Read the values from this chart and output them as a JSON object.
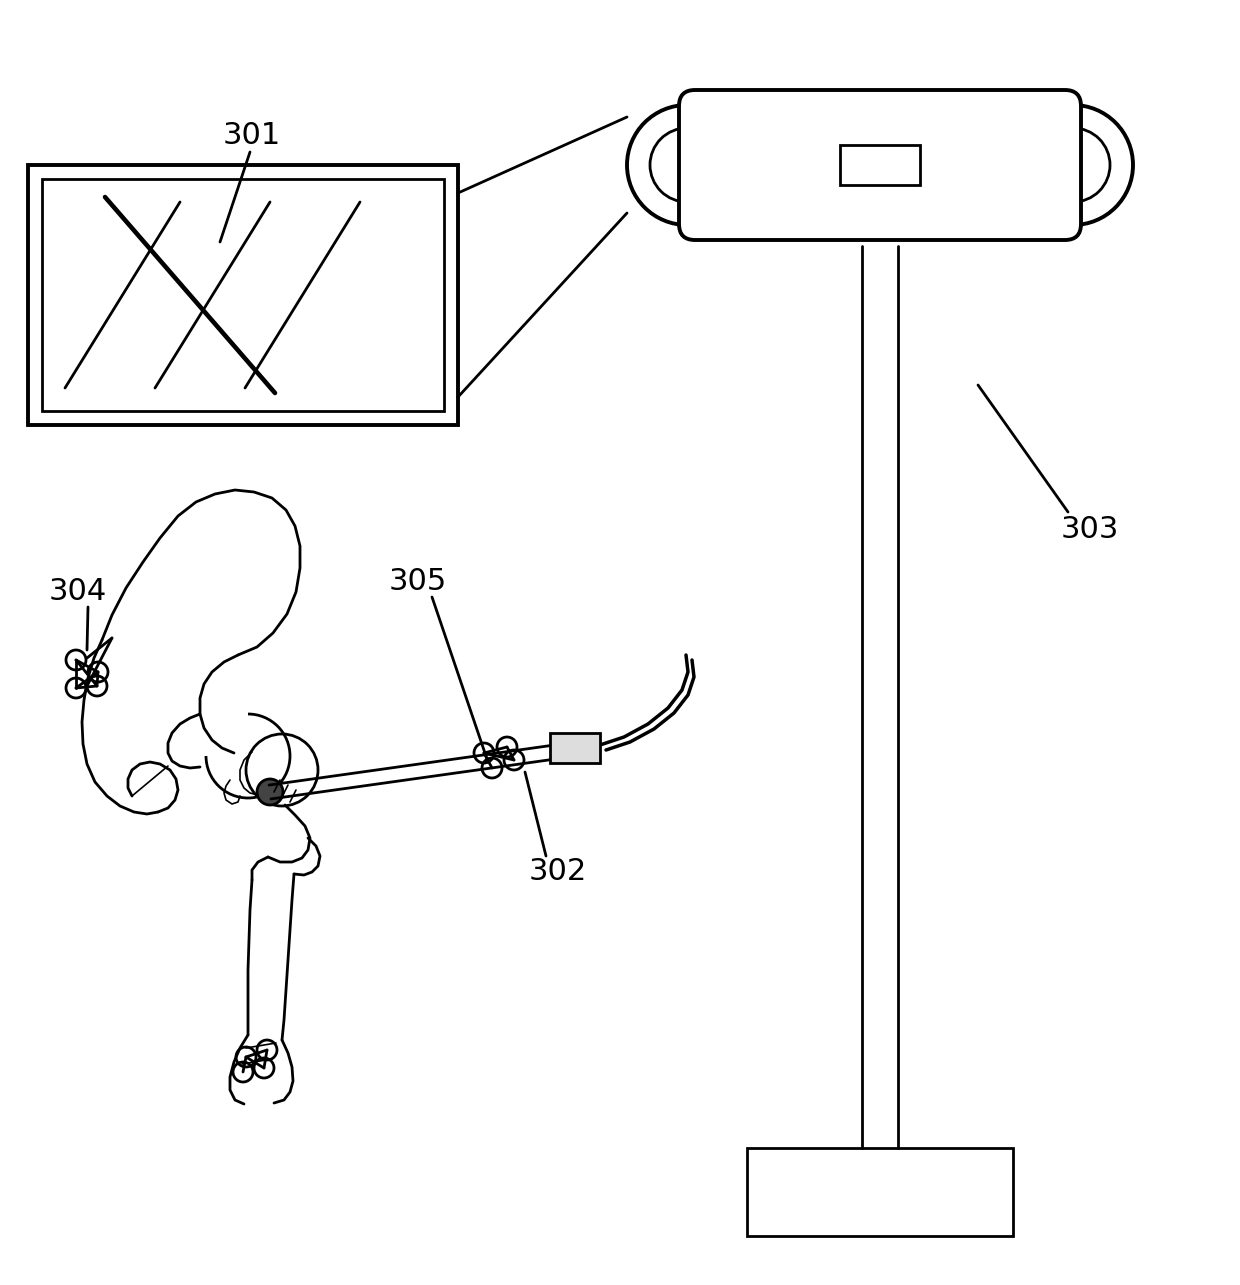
{
  "bg_color": "#ffffff",
  "lc": "#000000",
  "lw_thin": 1.2,
  "lw_med": 2.0,
  "lw_thick": 2.8,
  "label_fontsize": 22,
  "figsize": [
    12.4,
    12.85
  ],
  "dpi": 100
}
